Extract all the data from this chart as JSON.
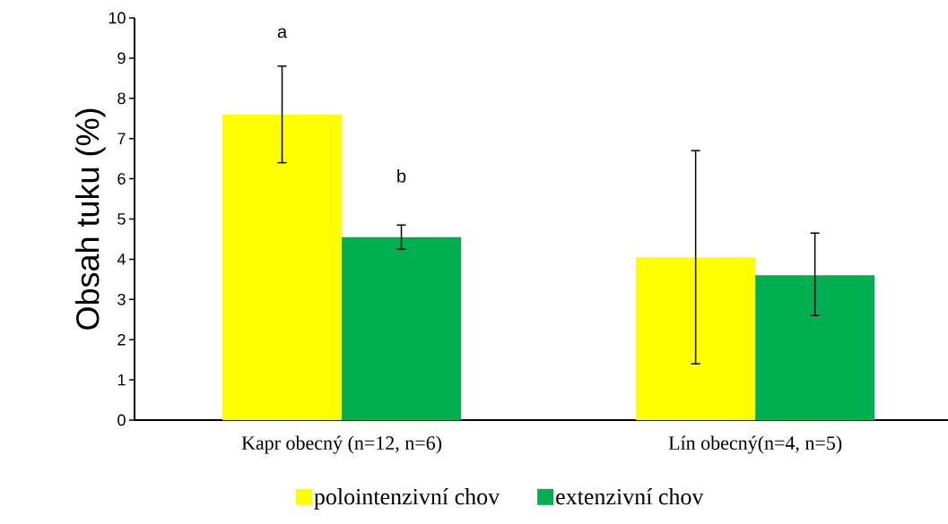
{
  "chart_data": {
    "type": "bar",
    "ylabel": "Obsah tuku (%)",
    "categories": [
      "Kapr obecný (n=12, n=6)",
      "Lín obecný(n=4, n=5)"
    ],
    "series": [
      {
        "name": "polointenzivní chov",
        "color": "#ffff00",
        "values": [
          7.6,
          4.05
        ],
        "errors": [
          [
            6.4,
            8.8
          ],
          [
            1.4,
            6.7
          ]
        ]
      },
      {
        "name": "extenzivní chov",
        "color": "#00b050",
        "values": [
          4.55,
          3.6
        ],
        "errors": [
          [
            4.25,
            4.85
          ],
          [
            2.6,
            4.65
          ]
        ]
      }
    ],
    "annotations": [
      "a",
      "b"
    ],
    "ylim": [
      0,
      10
    ],
    "yticks": [
      0,
      1,
      2,
      3,
      4,
      5,
      6,
      7,
      8,
      9,
      10
    ],
    "grid": false,
    "legend": "bottom"
  }
}
